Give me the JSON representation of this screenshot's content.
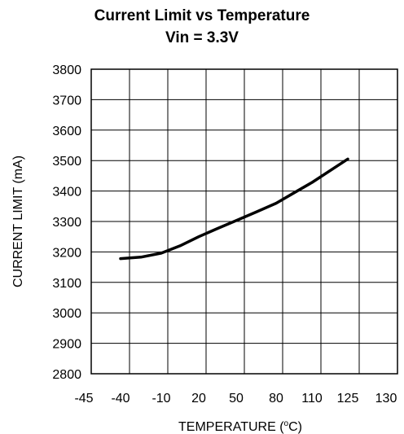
{
  "chart_data": {
    "type": "line",
    "title": "Current Limit vs Temperature",
    "subtitle": "Vin = 3.3V",
    "xlabel_main": "TEMPERATURE (",
    "xlabel_sup": "o",
    "xlabel_tail": "C)",
    "ylabel": "CURRENT LIMIT (mA)",
    "x_ticks": [
      -45,
      -40,
      -10,
      20,
      50,
      80,
      110,
      125,
      130
    ],
    "x_tick_labels": [
      "-45",
      "-40",
      "-10",
      "20",
      "50",
      "80",
      "110",
      "125",
      "130"
    ],
    "y_ticks": [
      2800,
      2900,
      3000,
      3100,
      3200,
      3300,
      3400,
      3500,
      3600,
      3700,
      3800
    ],
    "y_tick_labels": [
      "2800",
      "2900",
      "3000",
      "3100",
      "3200",
      "3300",
      "3400",
      "3500",
      "3600",
      "3700",
      "3800"
    ],
    "ylim": [
      2800,
      3800
    ],
    "grid": true,
    "series": [
      {
        "x": [
          -40,
          -25,
          -10,
          5,
          20,
          35,
          50,
          65,
          80,
          95,
          110,
          125
        ],
        "y": [
          3178,
          3183,
          3196,
          3220,
          3250,
          3277,
          3303,
          3331,
          3360,
          3394,
          3428,
          3505
        ]
      }
    ]
  }
}
